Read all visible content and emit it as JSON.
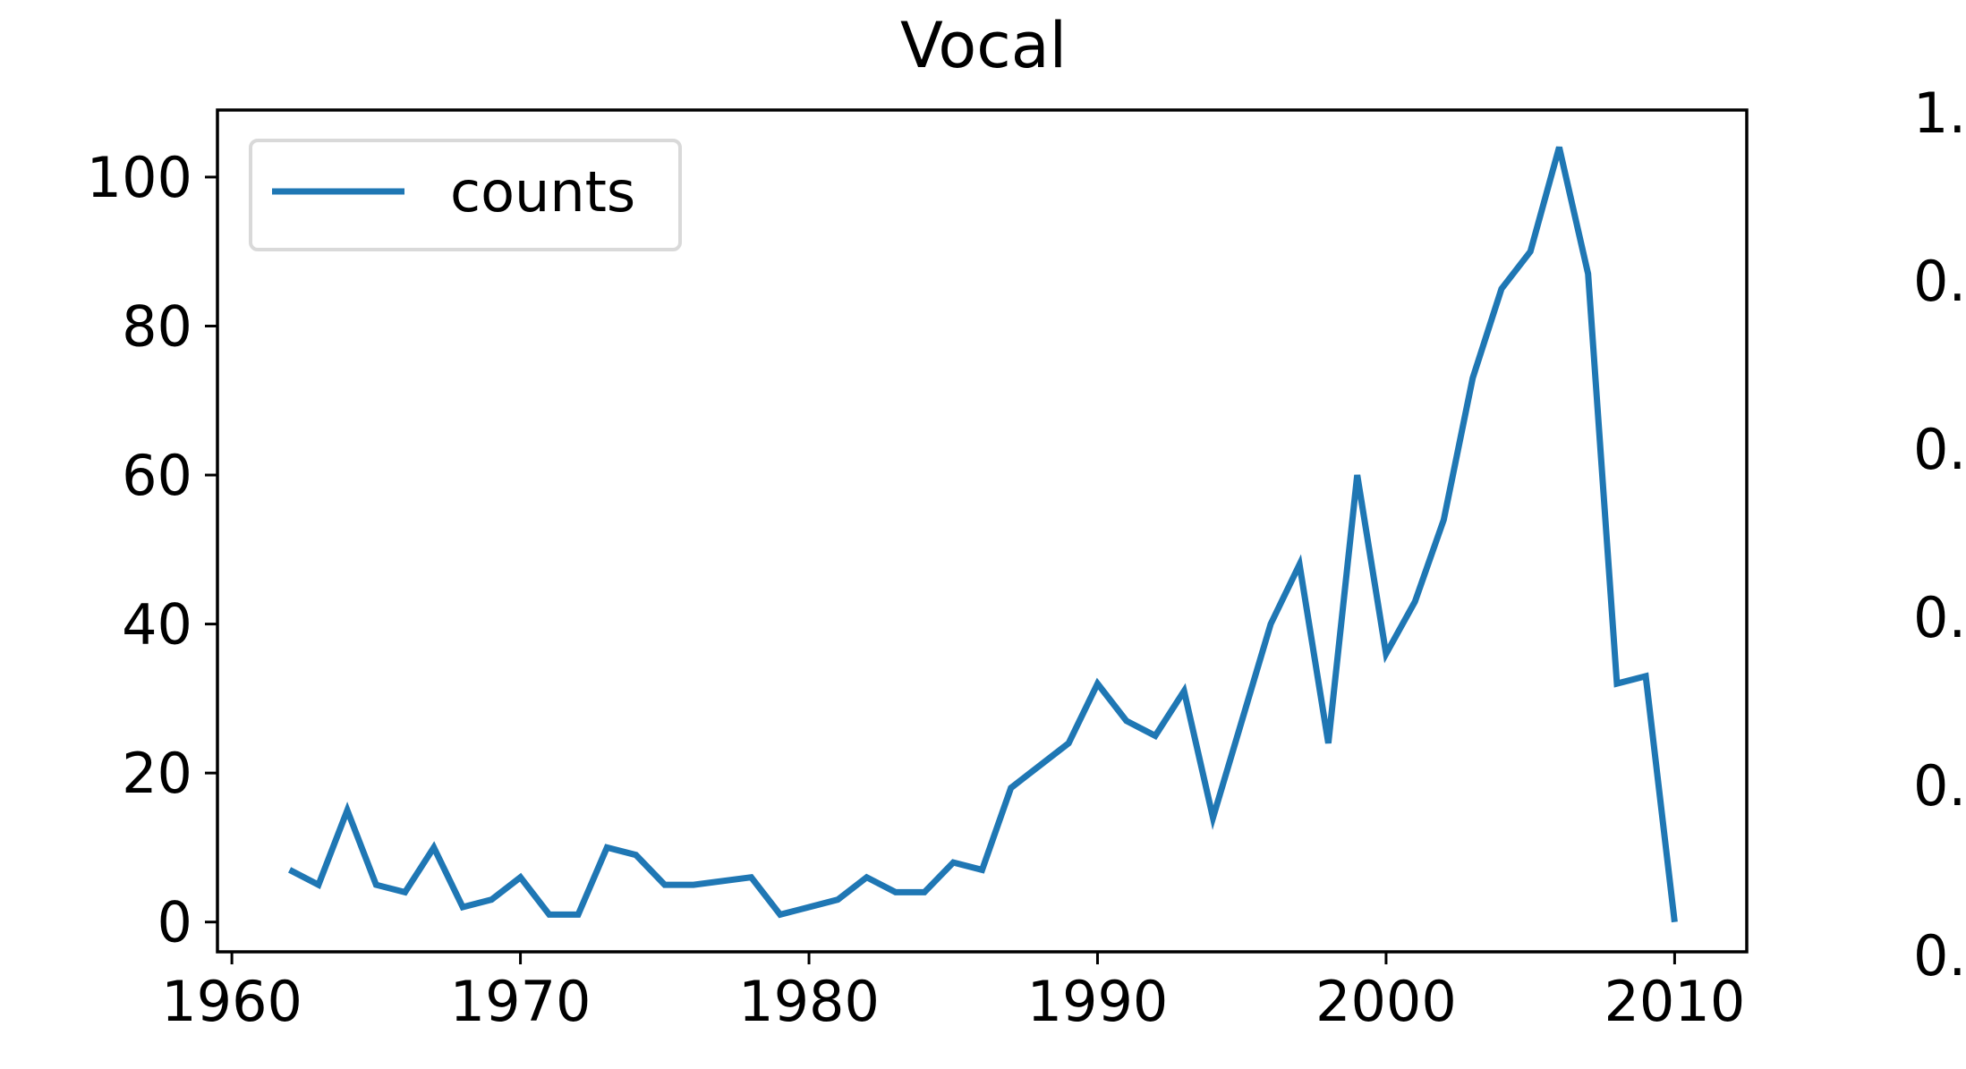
{
  "chart_data": [
    {
      "type": "line",
      "title": "Vocal",
      "xlabel": "",
      "ylabel": "",
      "xlim": [
        1959.5,
        2012.5
      ],
      "ylim": [
        -4,
        109
      ],
      "xticks": [
        1960,
        1970,
        1980,
        1990,
        2000,
        2010
      ],
      "yticks": [
        0,
        20,
        40,
        60,
        80,
        100
      ],
      "grid": false,
      "legend": "top-left",
      "series": [
        {
          "name": "counts",
          "color": "#1f77b4",
          "x": [
            1962,
            1963,
            1964,
            1965,
            1966,
            1967,
            1968,
            1969,
            1970,
            1971,
            1972,
            1973,
            1974,
            1975,
            1976,
            1978,
            1979,
            1981,
            1982,
            1983,
            1984,
            1985,
            1986,
            1987,
            1989,
            1990,
            1991,
            1992,
            1993,
            1994,
            1996,
            1997,
            1998,
            1999,
            2000,
            2001,
            2002,
            2003,
            2004,
            2005,
            2006,
            2007,
            2008,
            2009,
            2010
          ],
          "y": [
            7,
            5,
            15,
            5,
            4,
            10,
            2,
            3,
            6,
            1,
            1,
            10,
            9,
            5,
            5,
            6,
            1,
            3,
            6,
            4,
            4,
            8,
            7,
            18,
            24,
            32,
            27,
            25,
            31,
            14,
            40,
            48,
            24,
            60,
            36,
            43,
            54,
            73,
            85,
            90,
            104,
            87,
            32,
            33,
            0
          ]
        }
      ]
    },
    {
      "type": "line",
      "note_visible": "second panel, cropped at right edge",
      "yticks_visible": [
        "1.",
        "0.",
        "0.",
        "0.",
        "0.",
        "0."
      ]
    }
  ]
}
